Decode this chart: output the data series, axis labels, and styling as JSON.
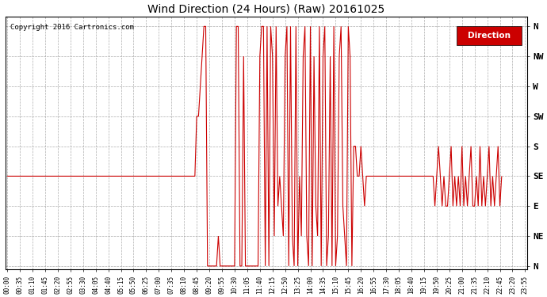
{
  "title": "Wind Direction (24 Hours) (Raw) 20161025",
  "copyright": "Copyright 2016 Cartronics.com",
  "legend_label": "Direction",
  "legend_bg": "#cc0000",
  "legend_fg": "#ffffff",
  "line_color": "#cc0000",
  "line_color2": "#555555",
  "bg_color": "#ffffff",
  "grid_color": "#999999",
  "ytick_labels": [
    "N",
    "NE",
    "E",
    "SE",
    "S",
    "SW",
    "W",
    "NW",
    "N"
  ],
  "ytick_values": [
    0,
    45,
    90,
    135,
    180,
    225,
    270,
    315,
    360
  ],
  "ylim": [
    -5,
    375
  ],
  "figsize": [
    6.9,
    3.75
  ],
  "dpi": 100,
  "wind_data": [
    135,
    135,
    135,
    135,
    135,
    135,
    135,
    135,
    135,
    135,
    135,
    135,
    135,
    135,
    135,
    135,
    135,
    135,
    135,
    135,
    135,
    135,
    135,
    135,
    135,
    135,
    135,
    135,
    135,
    135,
    135,
    135,
    135,
    135,
    135,
    135,
    135,
    135,
    135,
    135,
    135,
    135,
    135,
    135,
    135,
    135,
    135,
    135,
    135,
    135,
    135,
    135,
    135,
    135,
    135,
    135,
    135,
    135,
    135,
    135,
    135,
    135,
    135,
    135,
    135,
    135,
    135,
    135,
    135,
    135,
    135,
    135,
    135,
    135,
    135,
    135,
    135,
    135,
    135,
    135,
    135,
    135,
    135,
    135,
    135,
    135,
    135,
    135,
    135,
    135,
    135,
    135,
    135,
    135,
    135,
    135,
    135,
    135,
    135,
    135,
    135,
    135,
    135,
    135,
    135,
    225,
    225,
    270,
    315,
    360,
    360,
    0,
    0,
    0,
    0,
    0,
    0,
    45,
    0,
    0,
    0,
    0,
    0,
    0,
    0,
    0,
    0,
    360,
    360,
    0,
    0,
    315,
    0,
    0,
    0,
    0,
    0,
    0,
    0,
    0,
    315,
    360,
    360,
    0,
    360,
    0,
    360,
    315,
    45,
    360,
    90,
    135,
    90,
    45,
    315,
    360,
    0,
    360,
    45,
    0,
    360,
    0,
    135,
    45,
    315,
    360,
    45,
    0,
    360,
    0,
    315,
    90,
    45,
    360,
    0,
    315,
    360,
    0,
    45,
    315,
    0,
    360,
    0,
    45,
    315,
    360,
    90,
    45,
    0,
    360,
    315,
    0,
    180,
    180,
    135,
    135,
    180,
    135,
    90,
    135,
    135,
    135,
    135,
    135,
    135,
    135,
    135,
    135,
    135,
    135,
    135,
    135,
    135,
    135,
    135,
    135,
    135,
    135,
    135,
    135,
    135,
    135,
    135,
    135,
    135,
    135,
    135,
    135,
    135,
    135,
    135,
    135,
    135,
    135,
    135,
    135,
    135,
    90,
    135,
    180,
    135,
    90,
    135,
    90,
    90,
    135,
    180,
    90,
    135,
    90,
    135,
    90,
    180,
    90,
    135,
    90,
    135,
    180,
    90,
    90,
    135,
    90,
    180,
    90,
    135,
    90,
    135,
    180,
    90,
    135,
    90,
    135,
    180,
    90,
    135
  ]
}
